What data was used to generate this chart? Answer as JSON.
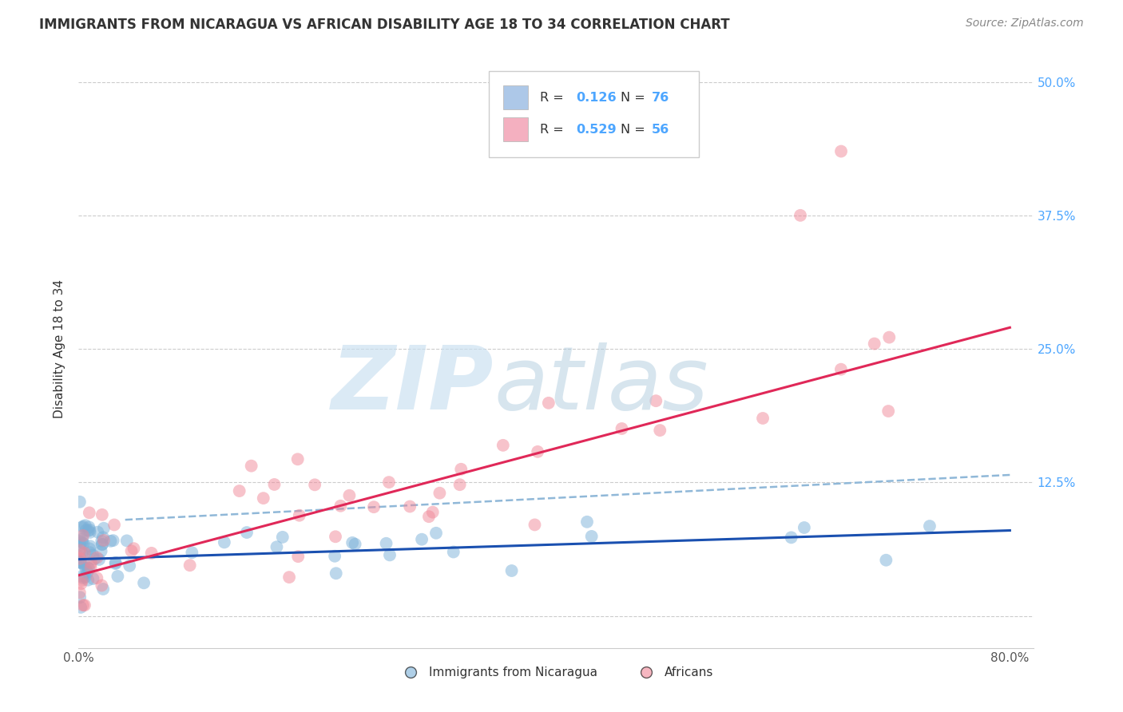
{
  "title": "IMMIGRANTS FROM NICARAGUA VS AFRICAN DISABILITY AGE 18 TO 34 CORRELATION CHART",
  "source": "Source: ZipAtlas.com",
  "ylabel": "Disability Age 18 to 34",
  "xlim": [
    0.0,
    0.82
  ],
  "ylim": [
    -0.03,
    0.53
  ],
  "yticks": [
    0.0,
    0.125,
    0.25,
    0.375,
    0.5
  ],
  "ytick_labels": [
    "",
    "12.5%",
    "25.0%",
    "37.5%",
    "50.0%"
  ],
  "xtick_labels": [
    "0.0%",
    "",
    "",
    "",
    "",
    "",
    "",
    "",
    "80.0%"
  ],
  "xticks": [
    0.0,
    0.1,
    0.2,
    0.3,
    0.4,
    0.5,
    0.6,
    0.7,
    0.8
  ],
  "series1_label": "Immigrants from Nicaragua",
  "series2_label": "Africans",
  "series1_R": "0.126",
  "series1_N": "76",
  "series2_R": "0.529",
  "series2_N": "56",
  "series1_color": "#adc8e8",
  "series2_color": "#f4b0c0",
  "series1_dot_color": "#7ab0d8",
  "series2_dot_color": "#f08898",
  "line1_color": "#1a50b0",
  "line2_color": "#e02858",
  "dashed_line_color": "#90b8d8",
  "background_color": "#ffffff",
  "grid_color": "#cccccc",
  "right_axis_color": "#4da6ff",
  "legend_border_color": "#cccccc",
  "text_color": "#333333",
  "source_color": "#888888",
  "title_fontsize": 12,
  "source_fontsize": 10,
  "tick_fontsize": 11,
  "ylabel_fontsize": 11,
  "legend_fontsize": 11.5,
  "watermark_zip_color": "#c8dff0",
  "watermark_atlas_color": "#b0ccdf"
}
